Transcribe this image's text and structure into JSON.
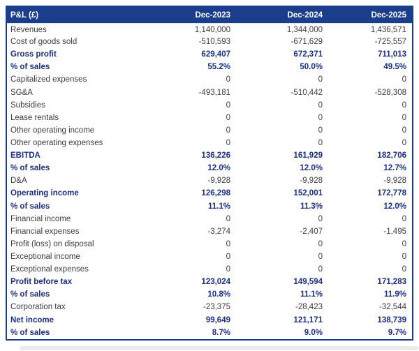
{
  "table": {
    "title": "P&L (£)",
    "columns": [
      "Dec-2023",
      "Dec-2024",
      "Dec-2025"
    ],
    "rows": [
      {
        "label": "Revenues",
        "emphasis": false,
        "values": [
          "1,140,000",
          "1,344,000",
          "1,436,571"
        ]
      },
      {
        "label": "Cost of goods sold",
        "emphasis": false,
        "values": [
          "-510,593",
          "-671,629",
          "-725,557"
        ]
      },
      {
        "label": "Gross profit",
        "emphasis": true,
        "values": [
          "629,407",
          "672,371",
          "711,013"
        ]
      },
      {
        "label": "% of sales",
        "emphasis": true,
        "values": [
          "55.2%",
          "50.0%",
          "49.5%"
        ]
      },
      {
        "label": "Capitalized expenses",
        "emphasis": false,
        "values": [
          "0",
          "0",
          "0"
        ]
      },
      {
        "label": "SG&A",
        "emphasis": false,
        "values": [
          "-493,181",
          "-510,442",
          "-528,308"
        ]
      },
      {
        "label": "Subsidies",
        "emphasis": false,
        "values": [
          "0",
          "0",
          "0"
        ]
      },
      {
        "label": "Lease rentals",
        "emphasis": false,
        "values": [
          "0",
          "0",
          "0"
        ]
      },
      {
        "label": "Other operating income",
        "emphasis": false,
        "values": [
          "0",
          "0",
          "0"
        ]
      },
      {
        "label": "Other operating expenses",
        "emphasis": false,
        "values": [
          "0",
          "0",
          "0"
        ]
      },
      {
        "label": "EBITDA",
        "emphasis": true,
        "values": [
          "136,226",
          "161,929",
          "182,706"
        ]
      },
      {
        "label": "% of sales",
        "emphasis": true,
        "values": [
          "12.0%",
          "12.0%",
          "12.7%"
        ]
      },
      {
        "label": "D&A",
        "emphasis": false,
        "values": [
          "-9,928",
          "-9,928",
          "-9,928"
        ]
      },
      {
        "label": "Operating income",
        "emphasis": true,
        "values": [
          "126,298",
          "152,001",
          "172,778"
        ]
      },
      {
        "label": "% of sales",
        "emphasis": true,
        "values": [
          "11.1%",
          "11.3%",
          "12.0%"
        ]
      },
      {
        "label": "Financial income",
        "emphasis": false,
        "values": [
          "0",
          "0",
          "0"
        ]
      },
      {
        "label": "Financial expenses",
        "emphasis": false,
        "values": [
          "-3,274",
          "-2,407",
          "-1,495"
        ]
      },
      {
        "label": "Profit (loss) on disposal",
        "emphasis": false,
        "values": [
          "0",
          "0",
          "0"
        ]
      },
      {
        "label": "Exceptional income",
        "emphasis": false,
        "values": [
          "0",
          "0",
          "0"
        ]
      },
      {
        "label": "Exceptional expenses",
        "emphasis": false,
        "values": [
          "0",
          "0",
          "0"
        ]
      },
      {
        "label": "Profit before tax",
        "emphasis": true,
        "values": [
          "123,024",
          "149,594",
          "171,283"
        ]
      },
      {
        "label": "% of sales",
        "emphasis": true,
        "values": [
          "10.8%",
          "11.1%",
          "11.9%"
        ]
      },
      {
        "label": "Corporation tax",
        "emphasis": false,
        "values": [
          "-23,375",
          "-28,423",
          "-32,544"
        ]
      },
      {
        "label": "Net income",
        "emphasis": true,
        "values": [
          "99,649",
          "121,171",
          "138,739"
        ]
      },
      {
        "label": "% of sales",
        "emphasis": true,
        "values": [
          "8.7%",
          "9.0%",
          "9.7%"
        ]
      }
    ]
  },
  "colors": {
    "header_bg": "#1b3e8c",
    "header_text": "#ffffff",
    "emphasis_text": "#1b2f85",
    "body_text": "#3d3d3d",
    "border": "#1b3e8c",
    "scrollbar": "#ebebe9"
  }
}
